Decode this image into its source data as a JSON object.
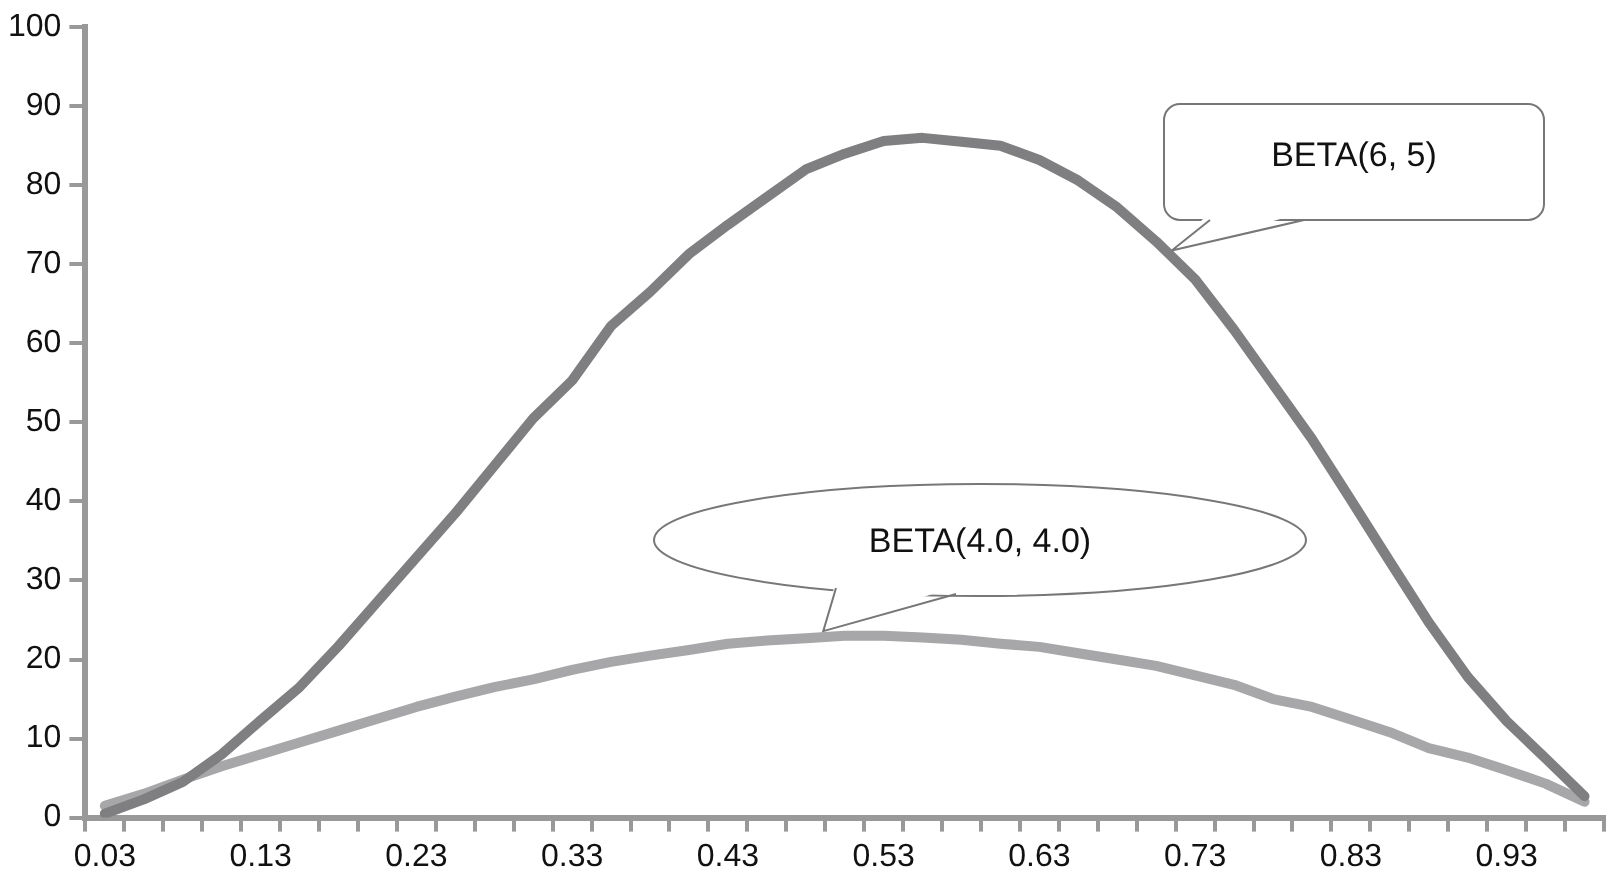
{
  "chart_data": {
    "type": "line",
    "categories": [
      "0.03",
      null,
      null,
      null,
      "0.13",
      null,
      null,
      null,
      "0.23",
      null,
      null,
      null,
      "0.33",
      null,
      null,
      null,
      "0.43",
      null,
      null,
      null,
      "0.53",
      null,
      null,
      null,
      "0.63",
      null,
      null,
      null,
      "0.73",
      null,
      null,
      null,
      "0.83",
      null,
      null,
      null,
      "0.93",
      null,
      null
    ],
    "series": [
      {
        "name": "BETA(6, 5)",
        "color": "#7f7f81",
        "values": [
          0.5,
          2.3,
          4.5,
          8,
          12.3,
          16.5,
          21.7,
          27.3,
          32.9,
          38.5,
          44.5,
          50.5,
          55.3,
          62.2,
          66.5,
          71.3,
          75,
          78.5,
          82,
          84,
          85.6,
          86,
          85.5,
          85,
          83.2,
          80.6,
          77.2,
          72.9,
          68.1,
          61.7,
          54.8,
          47.9,
          40.2,
          32.4,
          24.7,
          17.8,
          12.2,
          7.5,
          2.7
        ]
      },
      {
        "name": "BETA(4.0, 4.0)",
        "color": "#a7a7a9",
        "values": [
          1.5,
          3,
          4.8,
          6.5,
          8,
          9.5,
          11,
          12.5,
          14,
          15.3,
          16.5,
          17.5,
          18.7,
          19.7,
          20.5,
          21.2,
          22,
          22.4,
          22.7,
          23,
          23,
          22.8,
          22.5,
          22,
          21.6,
          20.8,
          20,
          19.2,
          18,
          16.8,
          15,
          14,
          12.4,
          10.8,
          8.8,
          7.6,
          6,
          4.3,
          2
        ]
      }
    ],
    "ylim": [
      0,
      100
    ],
    "yticks": [
      0,
      10,
      20,
      30,
      40,
      50,
      60,
      70,
      80,
      90,
      100
    ],
    "grid": false,
    "legend": false,
    "marker": "none",
    "line_style": "solid"
  }
}
